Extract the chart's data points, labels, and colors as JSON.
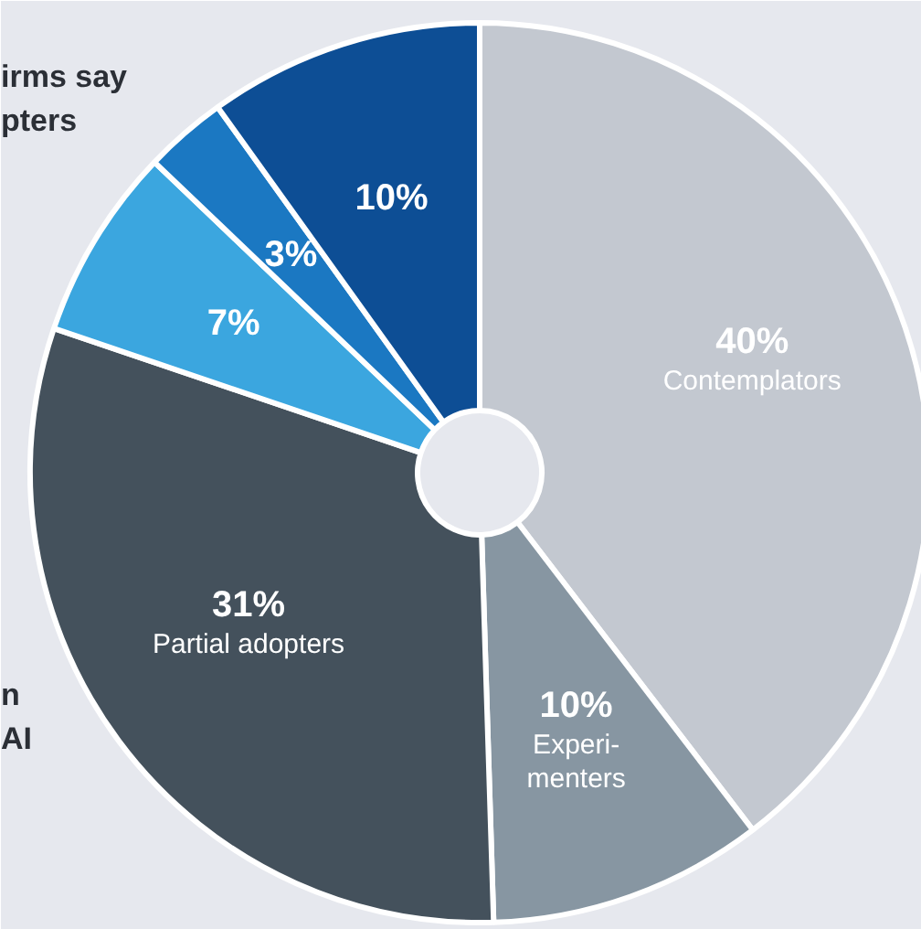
{
  "chart_data": {
    "type": "donut",
    "categories": [
      "Contemplators",
      "Experi-\nmenters",
      "Partial adopters",
      null,
      null,
      null
    ],
    "values": [
      40,
      10,
      31,
      7,
      3,
      10
    ],
    "value_labels": [
      "40%",
      "10%",
      "31%",
      "7%",
      "3%",
      "10%"
    ],
    "colors": [
      "#c3c8d0",
      "#8796a2",
      "#44515c",
      "#3ba6df",
      "#1b78c2",
      "#0d4e95"
    ],
    "annotations": [
      "irms say\npters",
      "n\nAI"
    ]
  }
}
